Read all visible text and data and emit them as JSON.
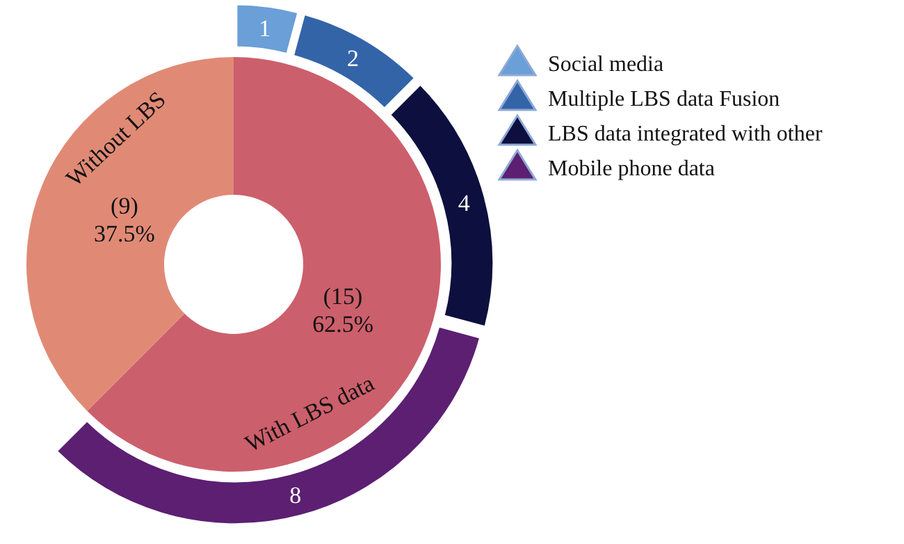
{
  "chart_data": [
    {
      "type": "donut",
      "categories": [
        "With LBS data",
        "Without LBS"
      ],
      "values": [
        15,
        9
      ],
      "colors": [
        "#cc5f6c",
        "#e08a76"
      ],
      "value_labels": [
        "(15)\n62.5%",
        "(9)\n37.5%"
      ]
    },
    {
      "type": "donut",
      "categories": [
        "Social media",
        "Multiple LBS data Fusion",
        "LBS data integrated with other",
        "Mobile phone data"
      ],
      "values": [
        1,
        2,
        4,
        8
      ],
      "colors": [
        "#6a9fd8",
        "#3464a8",
        "#0d0f3f",
        "#5c1f72"
      ],
      "data_labels": true,
      "legend": "right"
    }
  ]
}
